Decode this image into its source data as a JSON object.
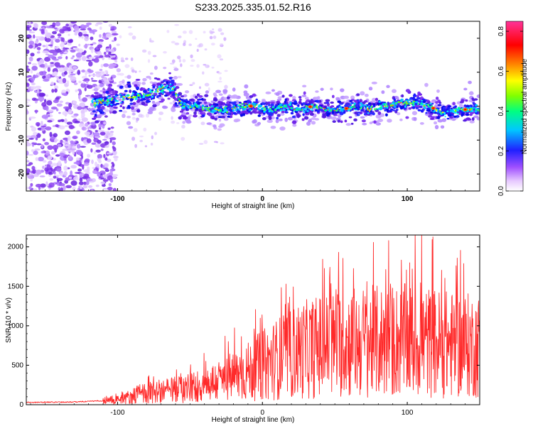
{
  "title": "S233.2025.335.01.52.R16",
  "chart_data": [
    {
      "type": "heatmap",
      "xlabel": "Height of straight line (km)",
      "ylabel": "Frequency (Hz)",
      "xlim": [
        -163,
        150
      ],
      "ylim": [
        -25,
        25
      ],
      "xticks": [
        -100,
        0,
        100
      ],
      "yticks": [
        -20,
        -10,
        0,
        10,
        20
      ],
      "ridge": {
        "x": [
          -115,
          -100,
          -90,
          -80,
          -70,
          -63,
          -55,
          -45,
          -35,
          -25,
          -15,
          -5,
          5,
          15,
          25,
          35,
          45,
          55,
          65,
          75,
          85,
          95,
          105,
          115,
          125,
          135,
          148
        ],
        "y": [
          1,
          2,
          3,
          3,
          5,
          6,
          0,
          0,
          -1,
          -1,
          0,
          0,
          -1,
          0,
          -1,
          0,
          -1,
          -1,
          0,
          -1,
          0,
          1,
          1,
          0,
          -2,
          -1,
          -1
        ]
      },
      "colorbar": {
        "label": "Normalized spectral amplitude",
        "range": [
          0.0,
          0.85
        ],
        "ticks": [
          "0.0",
          "0.2",
          "0.4",
          "0.6",
          "0.8"
        ],
        "colors": [
          "#ffffff",
          "#a050ff",
          "#0000ff",
          "#00c8ff",
          "#00ff80",
          "#80ff00",
          "#ffff00",
          "#ff8000",
          "#ff0000",
          "#ff3399"
        ]
      }
    },
    {
      "type": "line",
      "xlabel": "Height of straight line (km)",
      "ylabel": "SNR (10 * v/v)",
      "xlim": [
        -163,
        150
      ],
      "ylim": [
        0,
        2150
      ],
      "xticks": [
        -100,
        0,
        100
      ],
      "yticks": [
        0,
        500,
        1000,
        1500,
        2000
      ],
      "color": "#ff2a2a",
      "envelope": {
        "x": [
          -163,
          -130,
          -110,
          -95,
          -85,
          -70,
          -55,
          -40,
          -25,
          -10,
          0,
          10,
          25,
          40,
          60,
          80,
          100,
          115,
          130,
          150
        ],
        "y": [
          30,
          35,
          50,
          80,
          140,
          170,
          200,
          250,
          330,
          420,
          500,
          580,
          680,
          740,
          790,
          800,
          810,
          790,
          760,
          740
        ]
      }
    }
  ]
}
